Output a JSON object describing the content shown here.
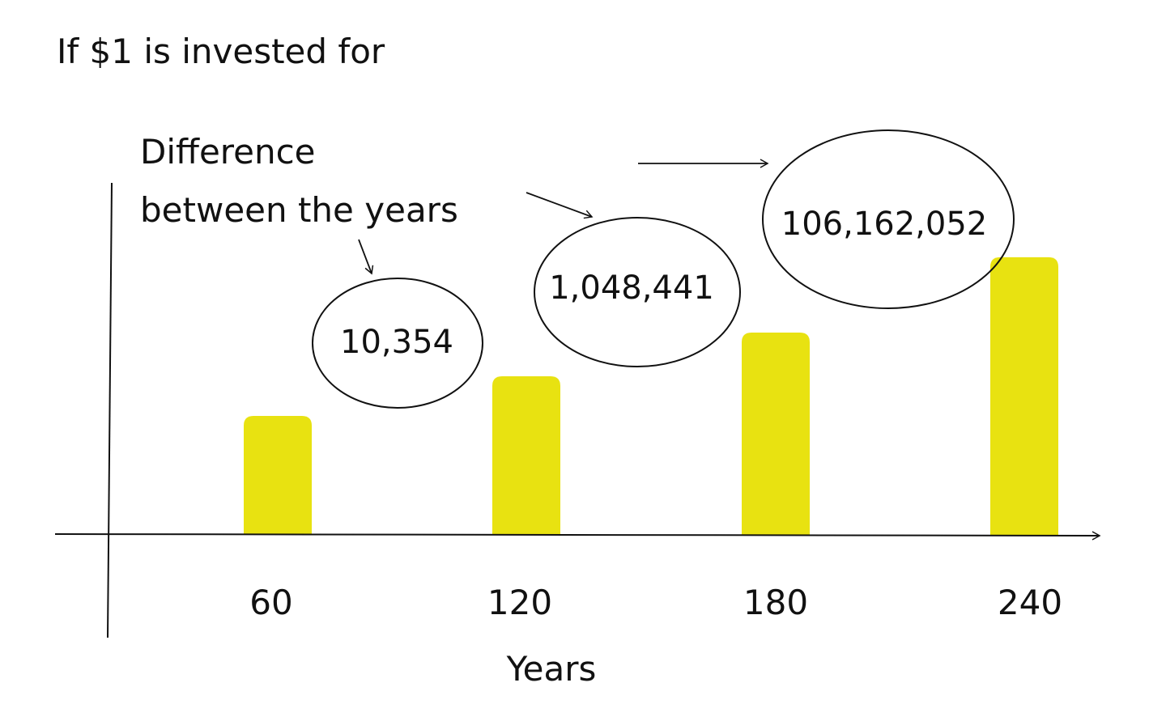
{
  "chart_data": {
    "type": "bar",
    "title": "If $1 is invested for",
    "xlabel": "Years",
    "ylabel": "",
    "categories": [
      "60",
      "120",
      "180",
      "240"
    ],
    "values": [
      30,
      40,
      51,
      70
    ],
    "annotation_title": [
      "Difference",
      "between the years"
    ],
    "differences": [
      "10,354",
      "1,048,441",
      "106,162,052"
    ],
    "colors": {
      "bar": "#E8E211",
      "axis": "#111111",
      "text": "#111111"
    },
    "grid": false,
    "legend": "none"
  }
}
